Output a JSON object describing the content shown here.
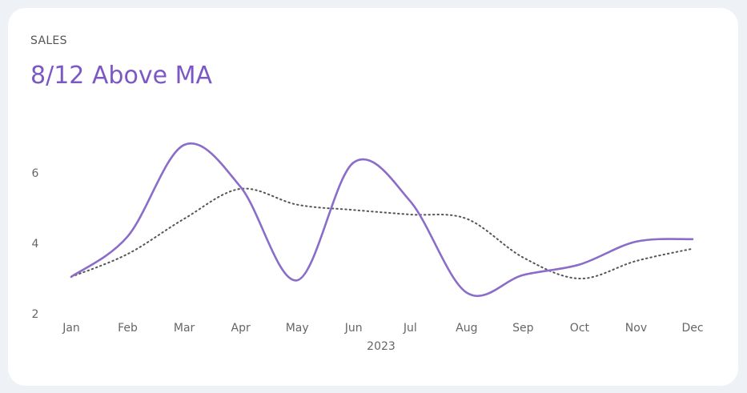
{
  "card": {
    "label": "SALES",
    "headline": "8/12 Above MA"
  },
  "colors": {
    "background": "#eef2f7",
    "card": "#ffffff",
    "accent": "#8a6cc9",
    "headline": "#7b58c4",
    "moving_average": "#555555",
    "axis_text": "#666666"
  },
  "chart_data": {
    "type": "line",
    "categories": [
      "Jan",
      "Feb",
      "Mar",
      "Apr",
      "May",
      "Jun",
      "Jul",
      "Aug",
      "Sep",
      "Oct",
      "Nov",
      "Dec"
    ],
    "xlabel": "2023",
    "ylabel": "",
    "ylim": [
      2,
      7.3
    ],
    "yticks": [
      2,
      4,
      6
    ],
    "grid": false,
    "series": [
      {
        "name": "",
        "style": "solid",
        "color": "#8a6cc9",
        "values": [
          3.05,
          4.2,
          6.8,
          5.6,
          2.95,
          6.3,
          5.2,
          2.6,
          3.1,
          3.4,
          4.05,
          4.12
        ]
      },
      {
        "name": "",
        "style": "dotted",
        "color": "#555555",
        "values": [
          3.05,
          3.7,
          4.7,
          5.55,
          5.1,
          4.95,
          4.82,
          4.7,
          3.6,
          3.0,
          3.5,
          3.85
        ]
      }
    ]
  }
}
